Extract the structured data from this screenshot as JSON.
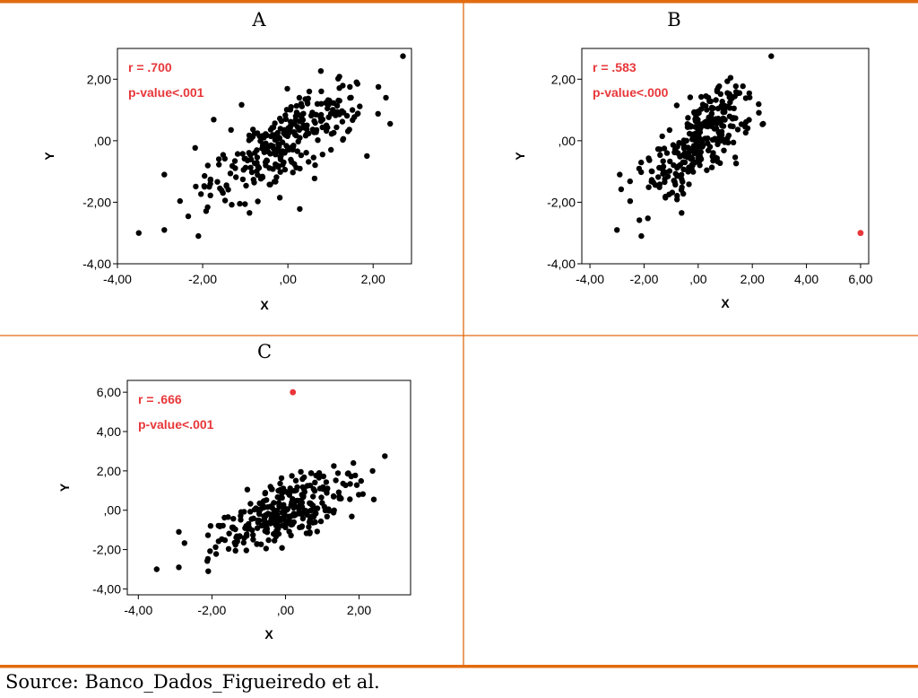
{
  "caption": "Source: Banco_Dados_Figueiredo et al.",
  "colors": {
    "frame": "#e26b10",
    "point": "#000000",
    "outlier": "#e8373a",
    "annotation": "#e8373a"
  },
  "chart_data": [
    {
      "type": "scatter",
      "panel": "A",
      "xlabel": "X",
      "ylabel": "Y",
      "xlim": [
        -4.0,
        2.9
      ],
      "ylim": [
        -4.0,
        3.0
      ],
      "xticks": [
        -4,
        -2,
        0,
        2
      ],
      "yticks": [
        -4,
        -2,
        0,
        2
      ],
      "xtick_labels": [
        "-4,00",
        "-2,00",
        ",00",
        "2,00"
      ],
      "ytick_labels": [
        "-4,00",
        "-2,00",
        ",00",
        "2,00"
      ],
      "annotation": [
        "r = .700",
        "p-value<.001"
      ],
      "outliers": [],
      "n_points": 300,
      "extremes": [
        [
          2.7,
          2.75
        ],
        [
          -3.5,
          -3.0
        ],
        [
          -2.1,
          -3.1
        ],
        [
          -2.9,
          -2.9
        ],
        [
          -2.9,
          -1.1
        ],
        [
          2.4,
          0.55
        ],
        [
          2.3,
          1.4
        ]
      ]
    },
    {
      "type": "scatter",
      "panel": "B",
      "xlabel": "X",
      "ylabel": "Y",
      "xlim": [
        -4.3,
        6.3
      ],
      "ylim": [
        -4.0,
        3.0
      ],
      "xticks": [
        -4,
        -2,
        0,
        2,
        4,
        6
      ],
      "yticks": [
        -4,
        -2,
        0,
        2
      ],
      "xtick_labels": [
        "-4,00",
        "-2,00",
        ",00",
        "2,00",
        "4,00",
        "6,00"
      ],
      "ytick_labels": [
        "-4,00",
        "-2,00",
        ",00",
        "2,00"
      ],
      "annotation": [
        "r = .583",
        "p-value<.000"
      ],
      "outliers": [
        [
          6.0,
          -3.0
        ]
      ],
      "n_points": 299,
      "extremes": [
        [
          2.7,
          2.75
        ],
        [
          -3.0,
          -2.9
        ],
        [
          -2.1,
          -3.1
        ],
        [
          -2.9,
          -1.1
        ],
        [
          2.4,
          0.55
        ]
      ]
    },
    {
      "type": "scatter",
      "panel": "C",
      "xlabel": "X",
      "ylabel": "Y",
      "xlim": [
        -4.3,
        3.4
      ],
      "ylim": [
        -4.3,
        6.6
      ],
      "xticks": [
        -4,
        -2,
        0,
        2
      ],
      "yticks": [
        -4,
        -2,
        0,
        2,
        4,
        6
      ],
      "xtick_labels": [
        "-4,00",
        "-2,00",
        ",00",
        "2,00"
      ],
      "ytick_labels": [
        "-4,00",
        "-2,00",
        ",00",
        "2,00",
        "4,00",
        "6,00"
      ],
      "annotation": [
        "r = .666",
        "p-value<.001"
      ],
      "outliers": [
        [
          0.2,
          6.0
        ]
      ],
      "n_points": 299,
      "extremes": [
        [
          2.7,
          2.75
        ],
        [
          -3.5,
          -3.0
        ],
        [
          -2.1,
          -3.1
        ],
        [
          -2.9,
          -2.9
        ],
        [
          -2.9,
          -1.1
        ],
        [
          2.4,
          0.55
        ]
      ]
    }
  ]
}
